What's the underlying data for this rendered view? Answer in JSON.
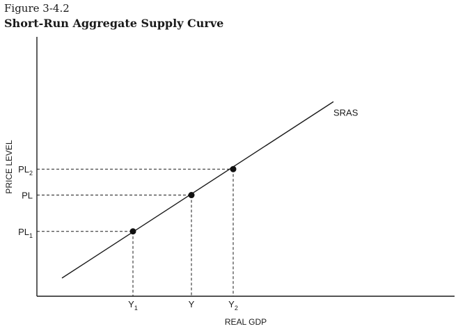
{
  "figure_label": "Figure 3-4.2",
  "figure_title": "Short-Run Aggregate Supply Curve",
  "chart_data": {
    "type": "line",
    "title": "Short-Run Aggregate Supply Curve",
    "xlabel": "REAL GDP",
    "ylabel": "PRICE LEVEL",
    "grid": false,
    "legend": "none",
    "xlim": [
      0,
      10
    ],
    "ylim": [
      0,
      10
    ],
    "series": [
      {
        "name": "SRAS",
        "x": [
          0.6,
          7.1
        ],
        "y": [
          0.7,
          7.5
        ]
      }
    ],
    "points": [
      {
        "id": "low",
        "x": 2.3,
        "y": 2.5,
        "x_label": "Y",
        "x_sub": "1",
        "y_label": "PL",
        "y_sub": "1"
      },
      {
        "id": "mid",
        "x": 3.7,
        "y": 3.9,
        "x_label": "Y",
        "x_sub": "",
        "y_label": "PL",
        "y_sub": ""
      },
      {
        "id": "high",
        "x": 4.7,
        "y": 4.9,
        "x_label": "Y",
        "x_sub": "2",
        "y_label": "PL",
        "y_sub": "2"
      }
    ],
    "colors": {
      "line": "#1a1a1a",
      "point": "#111111"
    }
  }
}
